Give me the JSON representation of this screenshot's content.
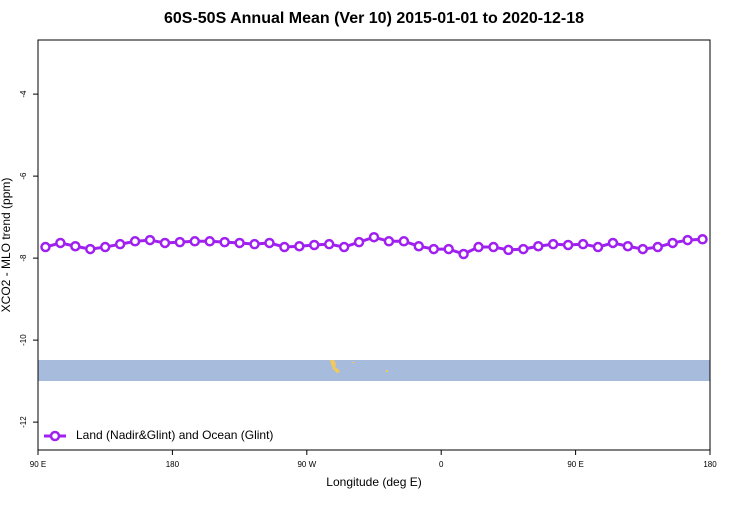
{
  "chart_data": {
    "type": "line",
    "title": "60S-50S Annual Mean (Ver 10)   2015-01-01 to 2020-12-18",
    "x_label": "Longitude (deg E)",
    "y_label": "XCO2 - MLO trend (ppm)",
    "xlim": [
      90,
      540
    ],
    "xticks": [
      {
        "value": 90,
        "label": "90 E"
      },
      180,
      {
        "value": 270,
        "label": "90 W"
      },
      {
        "value": 360,
        "label": "0"
      },
      {
        "value": 450,
        "label": "90 E"
      },
      {
        "value": 540,
        "label": "180"
      }
    ],
    "ylim": [
      -12.68,
      -2.68
    ],
    "yticks": [
      -4,
      -6,
      -8,
      -10,
      -12
    ],
    "legend": "bottom-left",
    "series": [
      {
        "name": "Land (Nadir&Glint) and Ocean (Glint)",
        "color": "#a020f0",
        "x": [
          95,
          105,
          115,
          125,
          135,
          145,
          155,
          165,
          175,
          185,
          195,
          205,
          215,
          225,
          235,
          245,
          255,
          265,
          275,
          285,
          295,
          305,
          315,
          325,
          335,
          345,
          355,
          365,
          375,
          385,
          395,
          405,
          415,
          425,
          435,
          445,
          455,
          465,
          475,
          485,
          495,
          505,
          515,
          525,
          535
        ],
        "values": [
          -7.73,
          -7.63,
          -7.71,
          -7.78,
          -7.73,
          -7.66,
          -7.59,
          -7.56,
          -7.63,
          -7.61,
          -7.59,
          -7.59,
          -7.61,
          -7.63,
          -7.66,
          -7.63,
          -7.73,
          -7.71,
          -7.68,
          -7.66,
          -7.73,
          -7.61,
          -7.49,
          -7.59,
          -7.59,
          -7.71,
          -7.78,
          -7.78,
          -7.9,
          -7.73,
          -7.73,
          -7.8,
          -7.78,
          -7.71,
          -7.66,
          -7.68,
          -7.66,
          -7.73,
          -7.63,
          -7.71,
          -7.78,
          -7.73,
          -7.63,
          -7.56,
          -7.54
        ]
      }
    ]
  }
}
